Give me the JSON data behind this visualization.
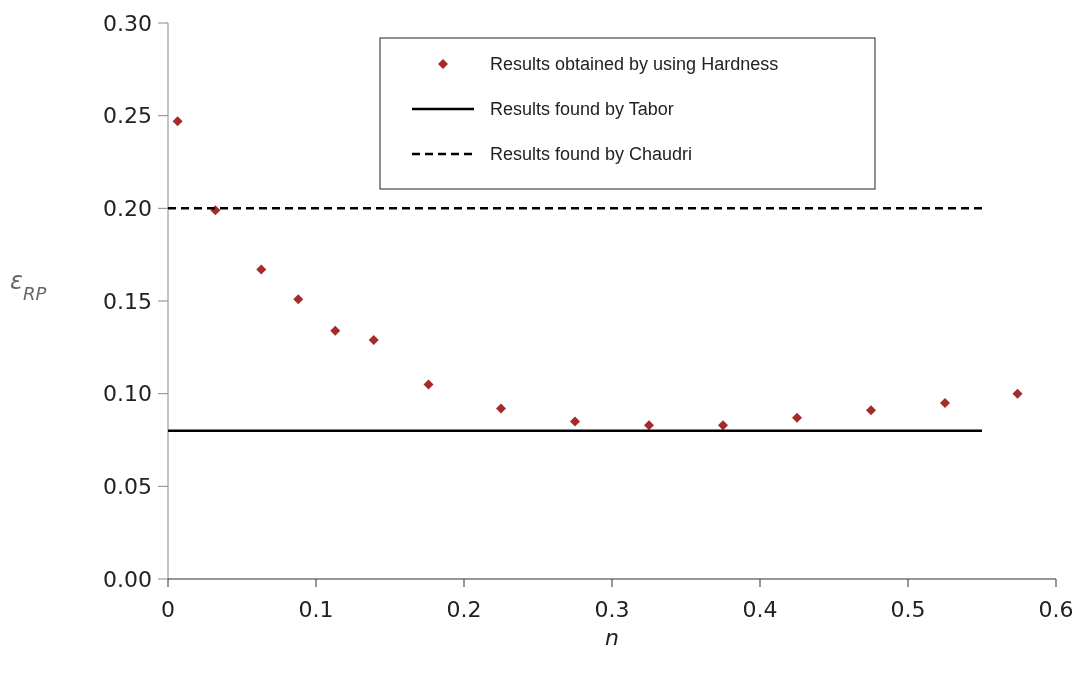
{
  "chart_data": {
    "type": "scatter",
    "xlabel": "n",
    "ylabel": "ε$_{RP}$",
    "xlim": [
      0,
      0.6
    ],
    "xticks": [
      {
        "value": 0,
        "label": "0"
      },
      0.1,
      0.2,
      0.3,
      0.4,
      0.5,
      0.6
    ],
    "ylim": [
      0,
      0.3
    ],
    "yticks": [
      {
        "value": 0,
        "label": "0.00"
      },
      0.05,
      {
        "value": 0.1,
        "label": "0.10"
      },
      0.15,
      {
        "value": 0.2,
        "label": "0.20"
      },
      0.25,
      {
        "value": 0.3,
        "label": "0.30"
      }
    ],
    "legend": "top",
    "grid": false,
    "series": [
      {
        "name": "Results obtained by using Hardness",
        "marker": "diamond",
        "color": "#a52a2a",
        "x": [
          0.0065,
          0.032,
          0.063,
          0.088,
          0.113,
          0.139,
          0.176,
          0.225,
          0.275,
          0.325,
          0.375,
          0.425,
          0.475,
          0.525,
          0.574
        ],
        "values": [
          0.247,
          0.199,
          0.167,
          0.151,
          0.134,
          0.129,
          0.105,
          0.092,
          0.085,
          0.083,
          0.083,
          0.087,
          0.091,
          0.095,
          0.1
        ]
      },
      {
        "name": "Results found by Tabor",
        "type": "line",
        "line_style": "solid",
        "color": "#000000",
        "x": [
          0,
          0.55
        ],
        "values": [
          0.08,
          0.08
        ]
      },
      {
        "name": "Results found by Chaudri",
        "type": "line",
        "line_style": "dashed",
        "color": "#000000",
        "x": [
          0,
          0.55
        ],
        "values": [
          0.2,
          0.2
        ]
      }
    ]
  }
}
